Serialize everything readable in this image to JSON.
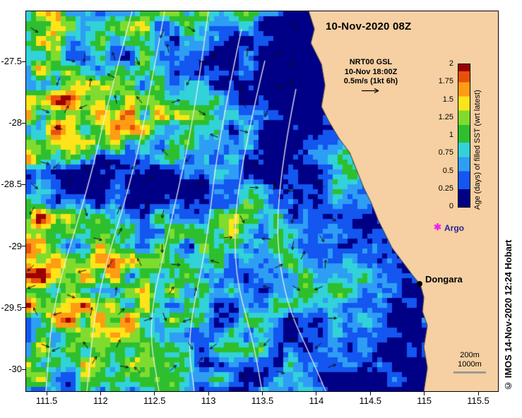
{
  "title": "10-Nov-2020 08Z",
  "vector_legend": {
    "line1": "NRT00 GSL",
    "line2": "10-Nov 18:00Z",
    "line3": "0.5m/s (1kt 6h)"
  },
  "colorbar": {
    "label": "Age (days) of filled SST (wrt latest)",
    "ticks": [
      "2",
      "1.75",
      "1.5",
      "1.25",
      "1",
      "0.75",
      "0.5",
      "0.25",
      "0"
    ],
    "min": 0,
    "max": 2,
    "palette": [
      {
        "from": 0.0,
        "to": 0.25,
        "color": "#000086"
      },
      {
        "from": 0.25,
        "to": 0.5,
        "color": "#1356f0"
      },
      {
        "from": 0.5,
        "to": 0.7,
        "color": "#2e9ef5"
      },
      {
        "from": 0.7,
        "to": 0.9,
        "color": "#31d2d8"
      },
      {
        "from": 0.9,
        "to": 1.15,
        "color": "#2ebf2e"
      },
      {
        "from": 1.15,
        "to": 1.35,
        "color": "#7fdc2e"
      },
      {
        "from": 1.35,
        "to": 1.55,
        "color": "#ffe419"
      },
      {
        "from": 1.55,
        "to": 1.75,
        "color": "#ff9c14"
      },
      {
        "from": 1.75,
        "to": 1.9,
        "color": "#e8500a"
      },
      {
        "from": 1.9,
        "to": 2.0,
        "color": "#990000"
      }
    ]
  },
  "markers": {
    "argo": {
      "label": "Argo",
      "marker_color": "#ee22ee",
      "label_color": "#222299"
    },
    "dongara": {
      "label": "Dongara",
      "marker_color": "#000000"
    }
  },
  "depth_legend": {
    "line1": "200m",
    "line2": "1000m",
    "line_color": "#9a9a9a"
  },
  "watermark": "© IMOS 14-Nov-2020 12:24 Hobart",
  "axes": {
    "x_ticks": [
      "111.5",
      "112",
      "112.5",
      "113",
      "113.5",
      "114",
      "114.5",
      "115",
      "115.5"
    ],
    "y_ticks": [
      "-27.5",
      "-28",
      "-28.5",
      "-29",
      "-29.5",
      "-30"
    ]
  },
  "map": {
    "seed": 7,
    "land_color": "#f6d0a2",
    "coast_color": "#3a3a3a",
    "contour_color": "#f0f0f0",
    "arrow_color": "#101010"
  }
}
